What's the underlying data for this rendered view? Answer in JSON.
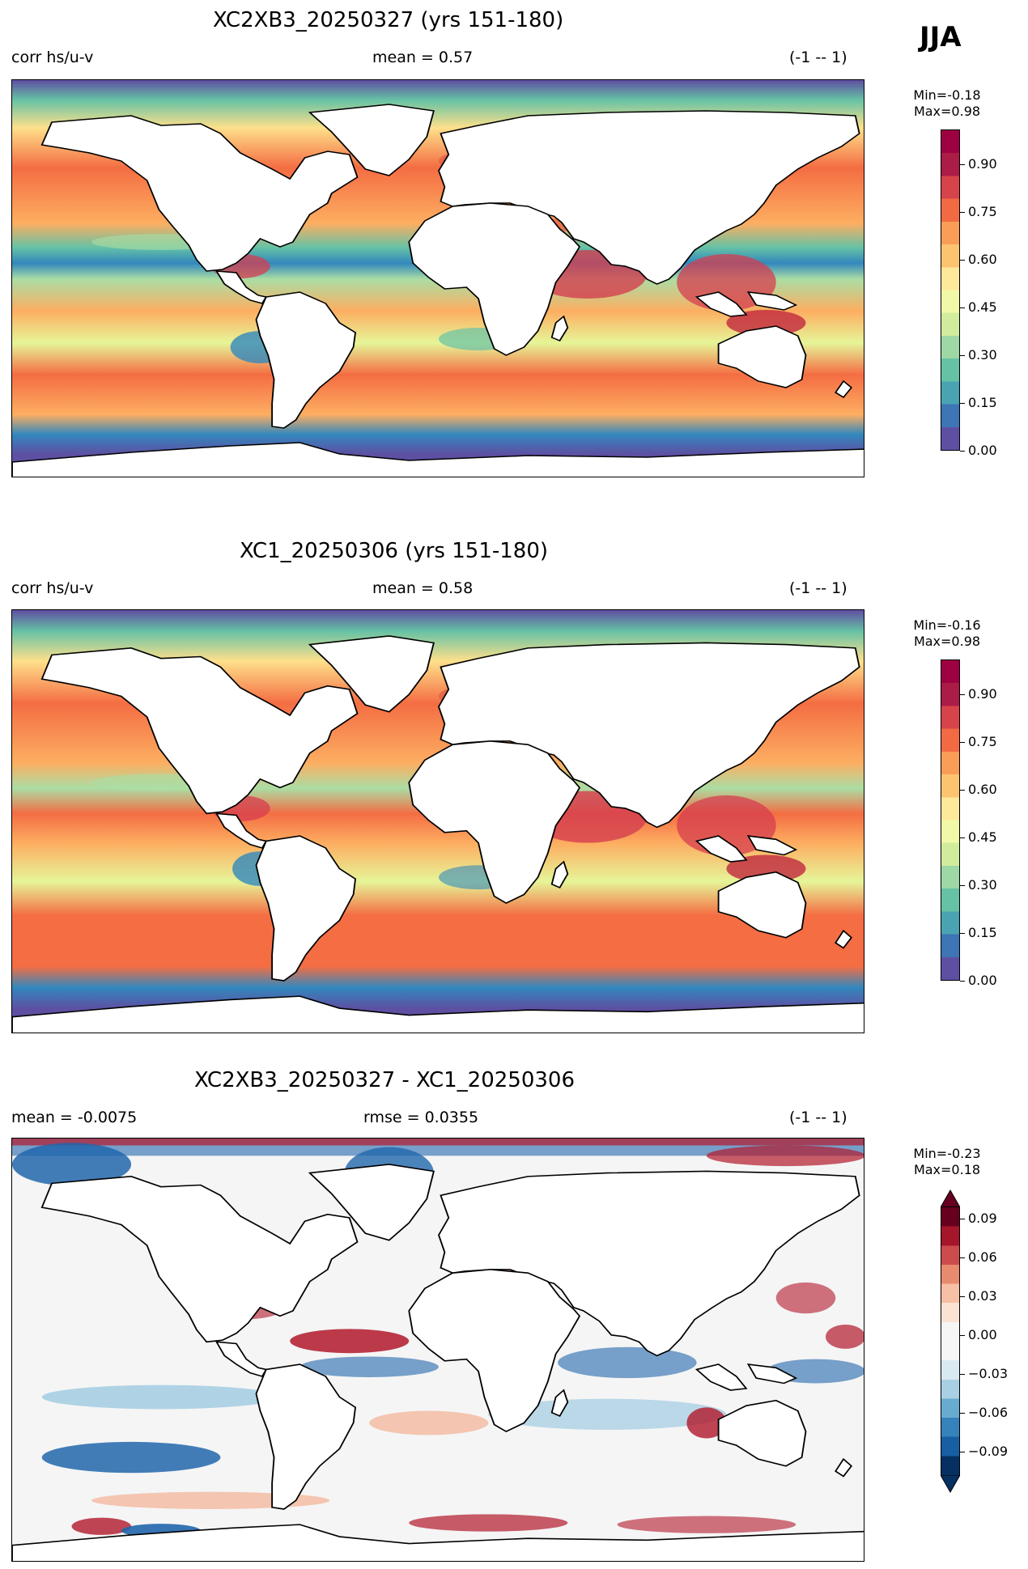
{
  "season": "JJA",
  "panels": [
    {
      "title": "XC2XB3_20250327 (yrs 151-180)",
      "left_label": "corr hs/u-v",
      "center_label": "mean = 0.57",
      "right_label": "(-1 -- 1)",
      "minmax": [
        "Min=-0.18",
        "Max=0.98"
      ],
      "colormap": "Spectral_r",
      "colorbar": {
        "ticks": [
          "0.00",
          "0.15",
          "0.30",
          "0.45",
          "0.60",
          "0.75",
          "0.90"
        ],
        "colors": [
          "#5e4fa2",
          "#3d75b5",
          "#4aa3b2",
          "#66c2a5",
          "#9dd8a5",
          "#d2ec9d",
          "#f1f9a8",
          "#fee89a",
          "#fdc470",
          "#f99d57",
          "#f16a43",
          "#d7434a",
          "#ab1c46",
          "#9e0142"
        ]
      }
    },
    {
      "title": "XC1_20250306 (yrs 151-180)",
      "left_label": "corr hs/u-v",
      "center_label": "mean = 0.58",
      "right_label": "(-1 -- 1)",
      "minmax": [
        "Min=-0.16",
        "Max=0.98"
      ],
      "colormap": "Spectral_r",
      "colorbar": {
        "ticks": [
          "0.00",
          "0.15",
          "0.30",
          "0.45",
          "0.60",
          "0.75",
          "0.90"
        ],
        "colors": [
          "#5e4fa2",
          "#3d75b5",
          "#4aa3b2",
          "#66c2a5",
          "#9dd8a5",
          "#d2ec9d",
          "#f1f9a8",
          "#fee89a",
          "#fdc470",
          "#f99d57",
          "#f16a43",
          "#d7434a",
          "#ab1c46",
          "#9e0142"
        ]
      }
    },
    {
      "title": "XC2XB3_20250327 - XC1_20250306",
      "left_label": "mean = -0.0075",
      "center_label": "rmse = 0.0355",
      "right_label": "(-1 -- 1)",
      "minmax": [
        "Min=-0.23",
        "Max=0.18"
      ],
      "colormap": "RdBu_r",
      "colorbar": {
        "ticks": [
          "0.09",
          "0.06",
          "0.03",
          "0.00",
          "−0.03",
          "−0.06",
          "−0.09"
        ],
        "colors": [
          "#67001f",
          "#a5162a",
          "#cc4c4d",
          "#e88a6e",
          "#f7bfa3",
          "#fbe3d4",
          "#f6f6f6",
          "#f6f6f6",
          "#d9e9f1",
          "#a8cfe4",
          "#68abd0",
          "#3682ba",
          "#175fa2",
          "#053061"
        ]
      }
    }
  ]
}
